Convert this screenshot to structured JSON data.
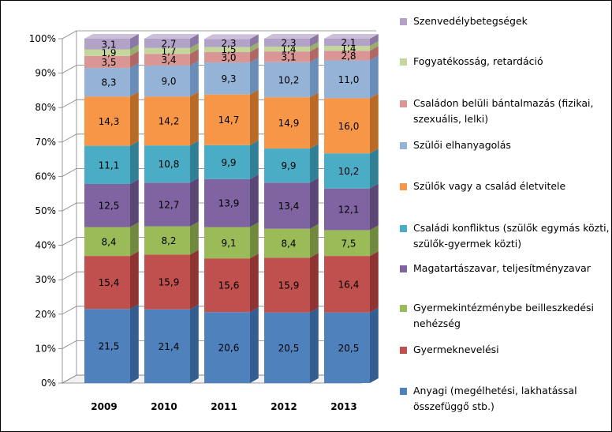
{
  "chart_data": {
    "type": "bar",
    "stacked": true,
    "percent": true,
    "categories": [
      "2009",
      "2010",
      "2011",
      "2012",
      "2013"
    ],
    "yticks": [
      "0%",
      "10%",
      "20%",
      "30%",
      "40%",
      "50%",
      "60%",
      "70%",
      "80%",
      "90%",
      "100%"
    ],
    "ylim": [
      0,
      100
    ],
    "legend_position": "right",
    "series": [
      {
        "name": "Anyagi (megélhetési, lakhatással összefüggő stb.)",
        "color": "#4F81BD",
        "top": "#6F9AD0",
        "side": "#345E90",
        "labels": [
          "21,5",
          "21,4",
          "20,6",
          "20,5",
          "20,5"
        ],
        "values": [
          21.5,
          21.4,
          20.6,
          20.5,
          20.5
        ]
      },
      {
        "name": "Gyermeknevelési",
        "color": "#C0504D",
        "top": "#D37470",
        "side": "#8E3432",
        "labels": [
          "15,4",
          "15,9",
          "15,6",
          "15,9",
          "16,4"
        ],
        "values": [
          15.4,
          15.9,
          15.6,
          15.9,
          16.4
        ]
      },
      {
        "name": "Gyermekintézménybe beilleszkedési nehézség",
        "color": "#9BBB59",
        "top": "#B2CC7C",
        "side": "#71893E",
        "labels": [
          "8,4",
          "8,2",
          "9,1",
          "8,4",
          "7,5"
        ],
        "values": [
          8.4,
          8.2,
          9.1,
          8.4,
          7.5
        ]
      },
      {
        "name": "Magatartászavar, teljesítményzavar",
        "color": "#8064A2",
        "top": "#9C85BA",
        "side": "#5B4776",
        "labels": [
          "12,5",
          "12,7",
          "13,9",
          "13,4",
          "12,1"
        ],
        "values": [
          12.5,
          12.7,
          13.9,
          13.4,
          12.1
        ]
      },
      {
        "name": "Családi konfliktus (szülők egymás közti, szülők-gyermek közti)",
        "color": "#4BACC6",
        "top": "#72C1D6",
        "side": "#307F95",
        "labels": [
          "11,1",
          "10,8",
          "9,9",
          "9,9",
          "10,2"
        ],
        "values": [
          11.1,
          10.8,
          9.9,
          9.9,
          10.2
        ]
      },
      {
        "name": "Szülők vagy a család életvitele",
        "color": "#F79646",
        "top": "#F9B073",
        "side": "#BA6A27",
        "labels": [
          "14,3",
          "14,2",
          "14,7",
          "14,9",
          "16,0"
        ],
        "values": [
          14.3,
          14.2,
          14.7,
          14.9,
          16.0
        ]
      },
      {
        "name": "Szülői elhanyagolás",
        "color": "#95B3D7",
        "top": "#B2C8E3",
        "side": "#6A8DB8",
        "labels": [
          "8,3",
          "9,0",
          "9,3",
          "10,2",
          "11,0"
        ],
        "values": [
          8.3,
          9.0,
          9.3,
          10.2,
          11.0
        ]
      },
      {
        "name": "Családon belüli bántalmazás (fizikai, szexuális, lelki)",
        "color": "#D99694",
        "top": "#E6B4B2",
        "side": "#B06866",
        "labels": [
          "3,5",
          "3,4",
          "3,0",
          "3,1",
          "2,8"
        ],
        "values": [
          3.5,
          3.4,
          3.0,
          3.1,
          2.8
        ]
      },
      {
        "name": "Fogyatékosság, retardáció",
        "color": "#C3D69B",
        "top": "#D7E4BC",
        "side": "#98AE6C",
        "labels": [
          "1,9",
          "1,7",
          "1,5",
          "1,4",
          "1,4"
        ],
        "values": [
          1.9,
          1.7,
          1.5,
          1.4,
          1.4
        ]
      },
      {
        "name": "Szenvedélybetegségek",
        "color": "#B3A2C7",
        "top": "#CBBFDA",
        "side": "#8A77A3",
        "labels": [
          "3,1",
          "2,7",
          "2,3",
          "2,3",
          "2,1"
        ],
        "values": [
          3.1,
          2.7,
          2.3,
          2.3,
          2.1
        ]
      }
    ]
  }
}
